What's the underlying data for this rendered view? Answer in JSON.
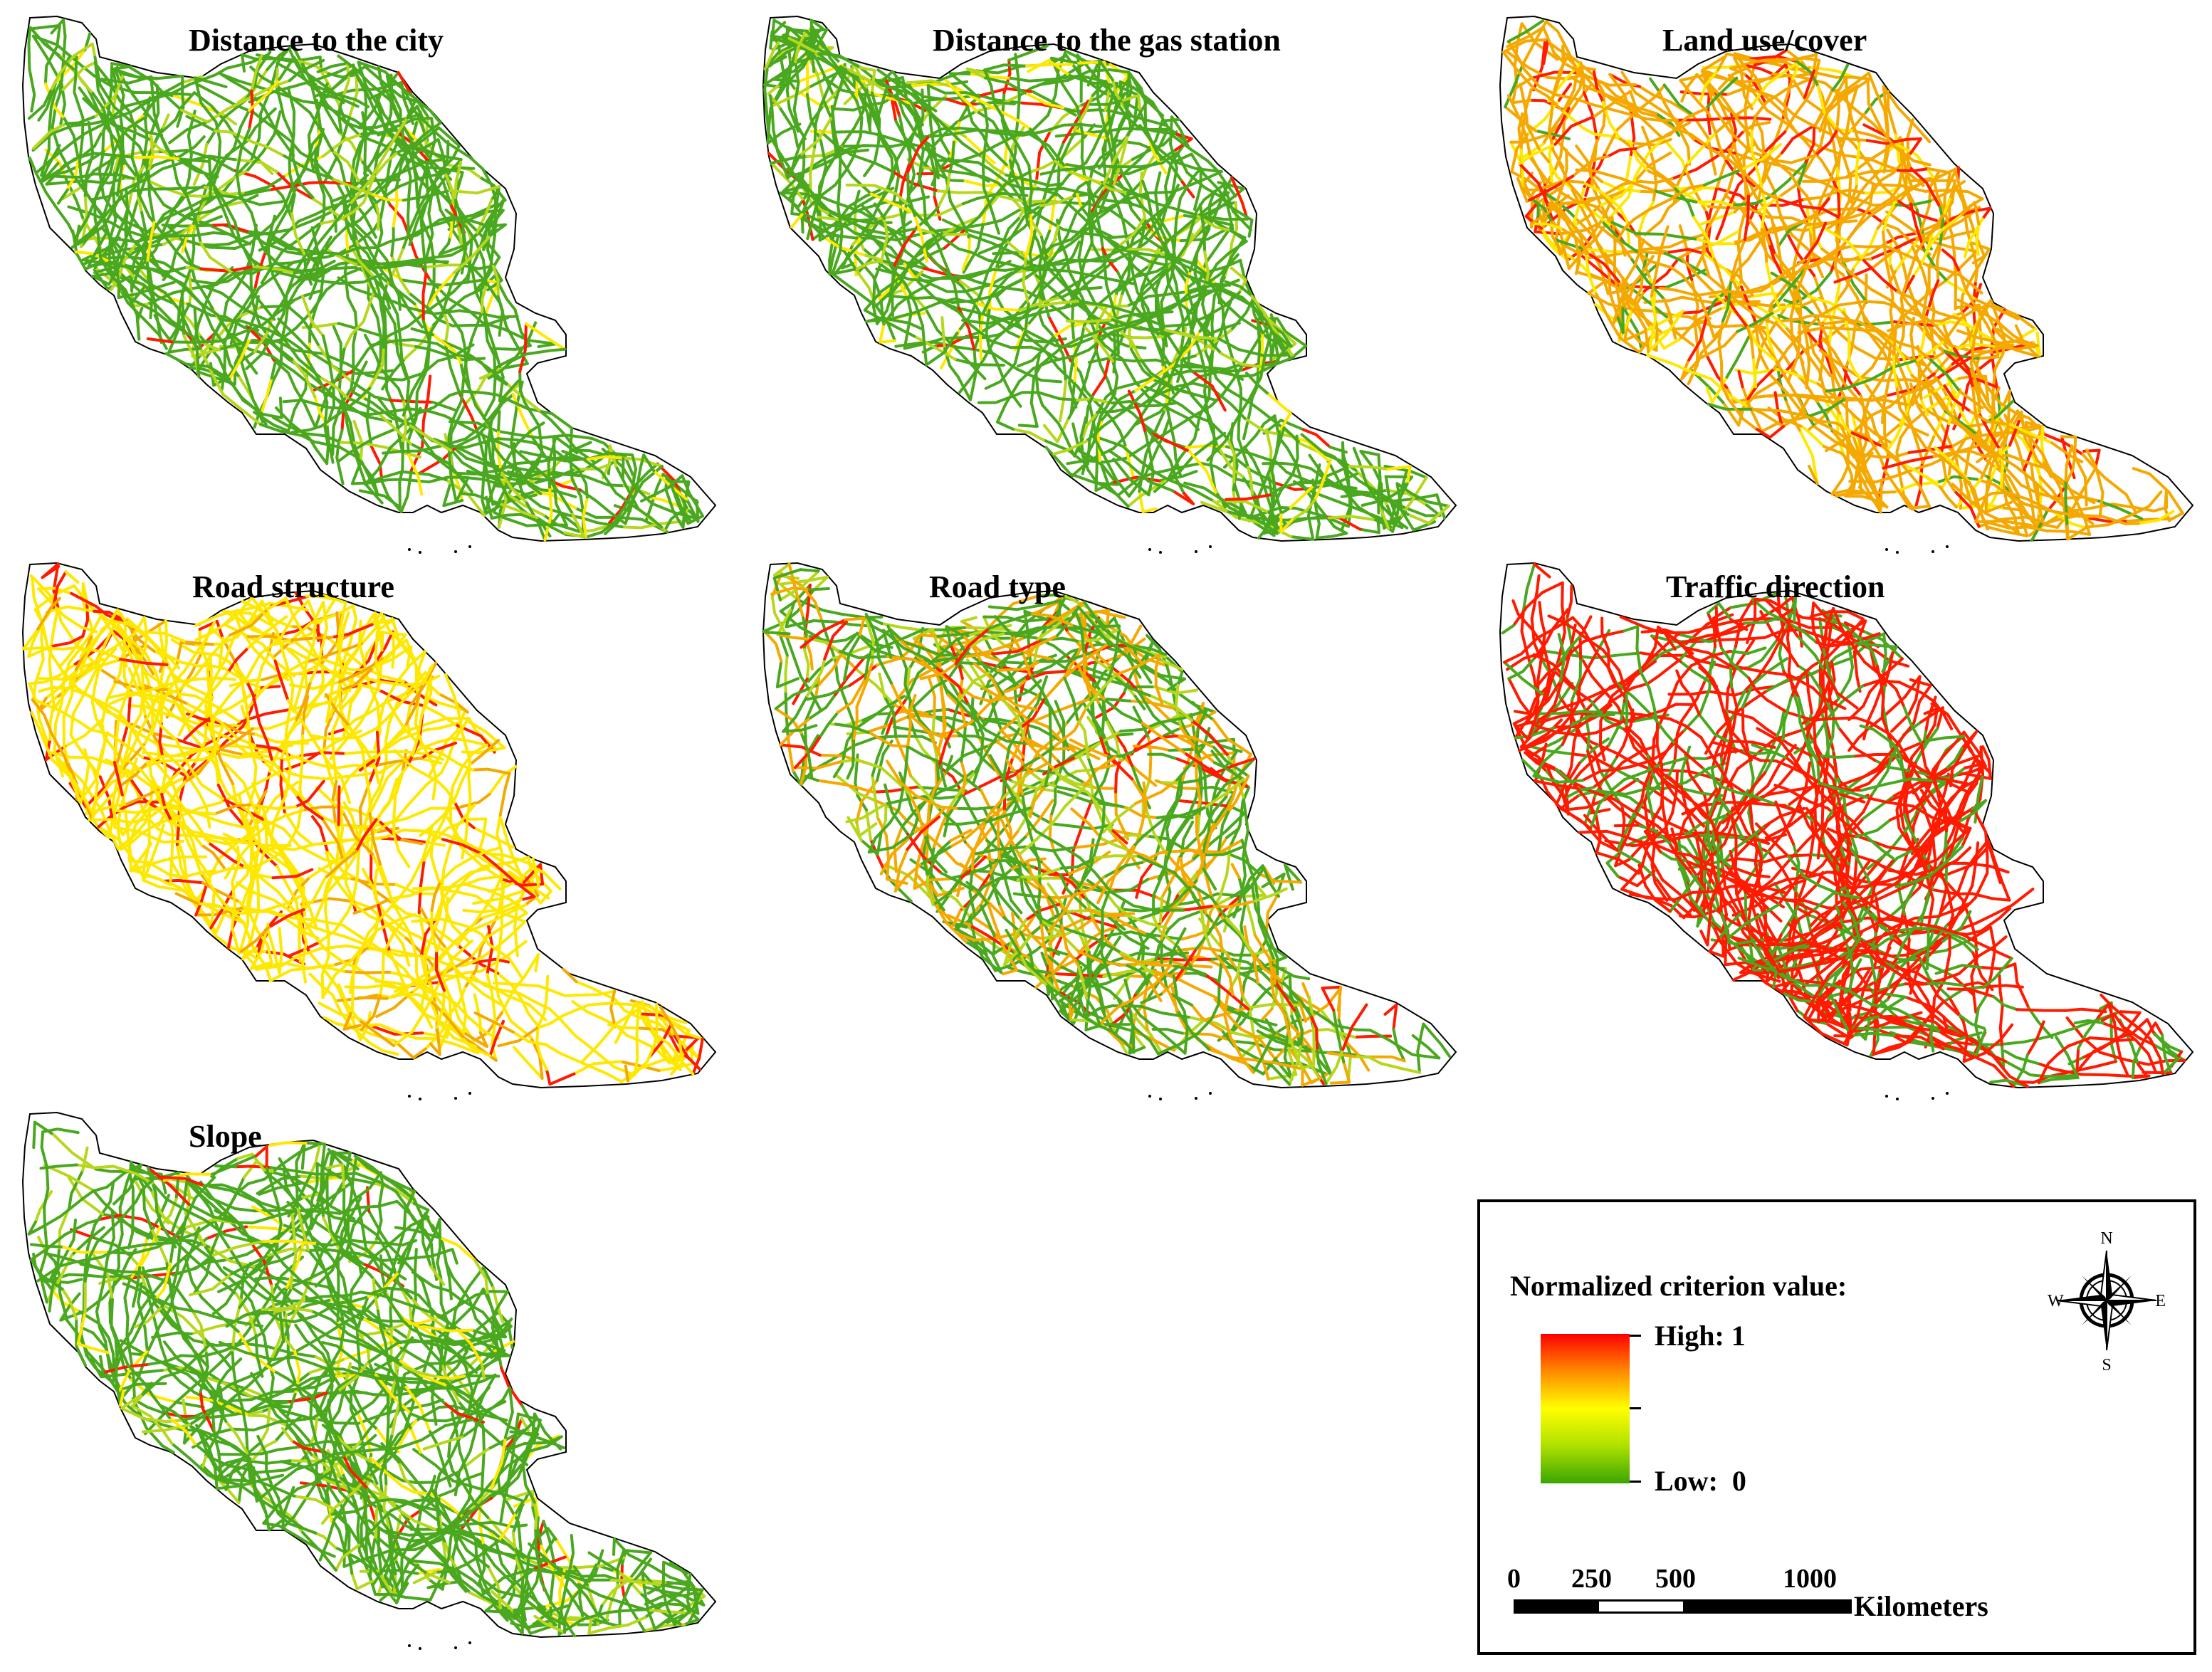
{
  "panels": [
    {
      "id": "city",
      "title": "Distance to the city",
      "scheme": "green-dominant"
    },
    {
      "id": "gas",
      "title": "Distance to the gas station",
      "scheme": "green-dominant"
    },
    {
      "id": "landuse",
      "title": "Land use/cover",
      "scheme": "orange-dominant"
    },
    {
      "id": "structure",
      "title": "Road structure",
      "scheme": "yellow-dominant"
    },
    {
      "id": "roadtype",
      "title": "Road type",
      "scheme": "mixed-green-orange"
    },
    {
      "id": "traffic",
      "title": "Traffic direction",
      "scheme": "red-dominant"
    },
    {
      "id": "slope",
      "title": "Slope",
      "scheme": "green-dominant"
    }
  ],
  "legend": {
    "title": "Normalized criterion value:",
    "high_label": "High: 1",
    "low_label": "Low:  0",
    "ramp_colors": [
      "#ff0000",
      "#ff8a00",
      "#ffff00",
      "#aee000",
      "#3aa600"
    ]
  },
  "scale": {
    "labels": [
      "0",
      "250",
      "500",
      "1000"
    ],
    "unit": "Kilometers"
  },
  "compass": {
    "n": "N",
    "s": "S",
    "e": "E",
    "w": "W"
  },
  "colors": {
    "outline": "#000000",
    "green": "#4aa81e",
    "yellow_green": "#b6d71c",
    "yellow": "#ffe800",
    "orange": "#f5a800",
    "red": "#ff1a00"
  }
}
